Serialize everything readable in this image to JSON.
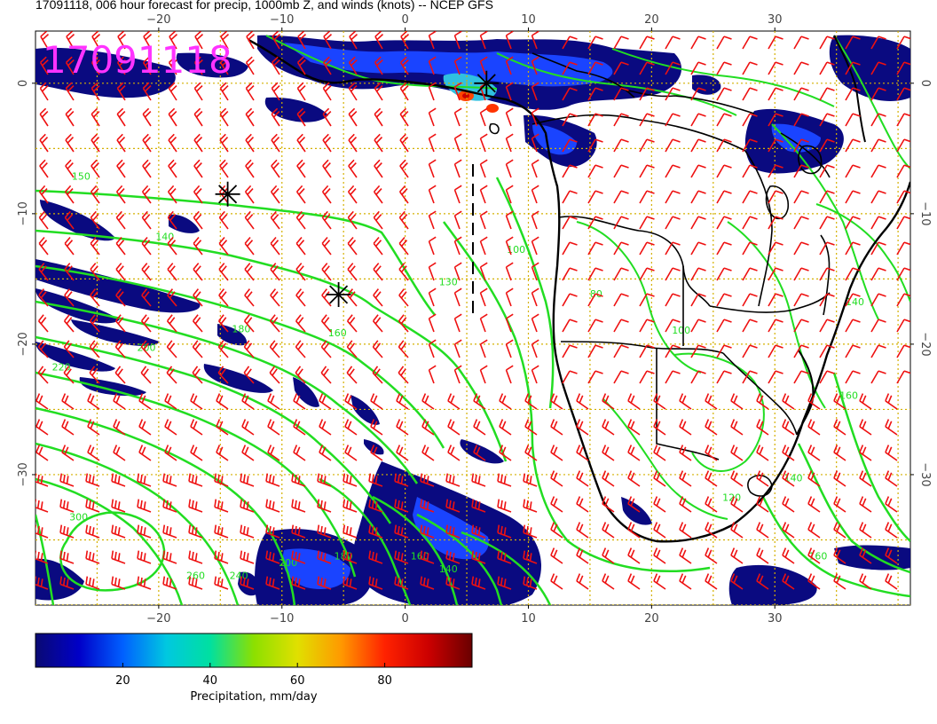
{
  "title": "17091118, 006 hour forecast for precip, 1000mb Z, and winds (knots) -- NCEP GFS",
  "stamp": "17091118",
  "colors": {
    "stamp": "#ff33ff",
    "contour": "#22dd22",
    "barb": "#ee1111",
    "grid": "#d4b000",
    "coast": "#000000"
  },
  "axes": {
    "lon_range": [
      -30,
      41
    ],
    "lat_range": [
      -40,
      4
    ],
    "lon_ticks": [
      -20,
      -10,
      0,
      10,
      20,
      30
    ],
    "lat_ticks": [
      0,
      -10,
      -20,
      -30
    ],
    "lon_tick_labels": [
      "−20",
      "−10",
      "0",
      "10",
      "20",
      "30"
    ],
    "lat_tick_labels": [
      "0",
      "−10",
      "−20",
      "−30"
    ]
  },
  "contour_labels": [
    {
      "text": "150",
      "lon": -26.3,
      "lat": -7.4
    },
    {
      "text": "140",
      "lon": -19.5,
      "lat": -12.0
    },
    {
      "text": "180",
      "lon": -13.3,
      "lat": -19.1
    },
    {
      "text": "200",
      "lon": -21.0,
      "lat": -20.5
    },
    {
      "text": "220",
      "lon": -27.9,
      "lat": -22.0
    },
    {
      "text": "160",
      "lon": -5.5,
      "lat": -19.4
    },
    {
      "text": "130",
      "lon": 3.5,
      "lat": -15.5
    },
    {
      "text": "100",
      "lon": 9.0,
      "lat": -13.0
    },
    {
      "text": "100",
      "lon": 22.4,
      "lat": -19.2
    },
    {
      "text": "80",
      "lon": 15.5,
      "lat": -16.4
    },
    {
      "text": "120",
      "lon": 26.5,
      "lat": -32.0
    },
    {
      "text": "140",
      "lon": 31.5,
      "lat": -30.5
    },
    {
      "text": "140",
      "lon": 36.5,
      "lat": -17.0
    },
    {
      "text": "160",
      "lon": 33.5,
      "lat": -36.5
    },
    {
      "text": "160",
      "lon": 36.0,
      "lat": -24.2
    },
    {
      "text": "300",
      "lon": -26.5,
      "lat": -33.5
    },
    {
      "text": "260",
      "lon": -17.0,
      "lat": -38.0
    },
    {
      "text": "240",
      "lon": -13.5,
      "lat": -38.0
    },
    {
      "text": "200",
      "lon": -9.5,
      "lat": -37.0
    },
    {
      "text": "180",
      "lon": -5.0,
      "lat": -36.5
    },
    {
      "text": "160",
      "lon": 1.2,
      "lat": -36.5
    },
    {
      "text": "140",
      "lon": 3.5,
      "lat": -37.5
    }
  ],
  "wind_centers": [
    {
      "lon": 6.6,
      "lat": 0.0
    },
    {
      "lon": -14.4,
      "lat": -8.5
    },
    {
      "lon": -5.4,
      "lat": -16.2
    }
  ],
  "colorbar": {
    "label": "Precipitation, mm/day",
    "range": [
      0,
      100
    ],
    "ticks": [
      20,
      40,
      60,
      80
    ],
    "tick_labels": [
      "20",
      "40",
      "60",
      "80"
    ],
    "stops": [
      "#0a0a73",
      "#0000c8",
      "#0060ff",
      "#00c8e0",
      "#00e0a0",
      "#8ce000",
      "#e0e000",
      "#ff9900",
      "#ff2200",
      "#cc0000",
      "#6a0000"
    ]
  }
}
